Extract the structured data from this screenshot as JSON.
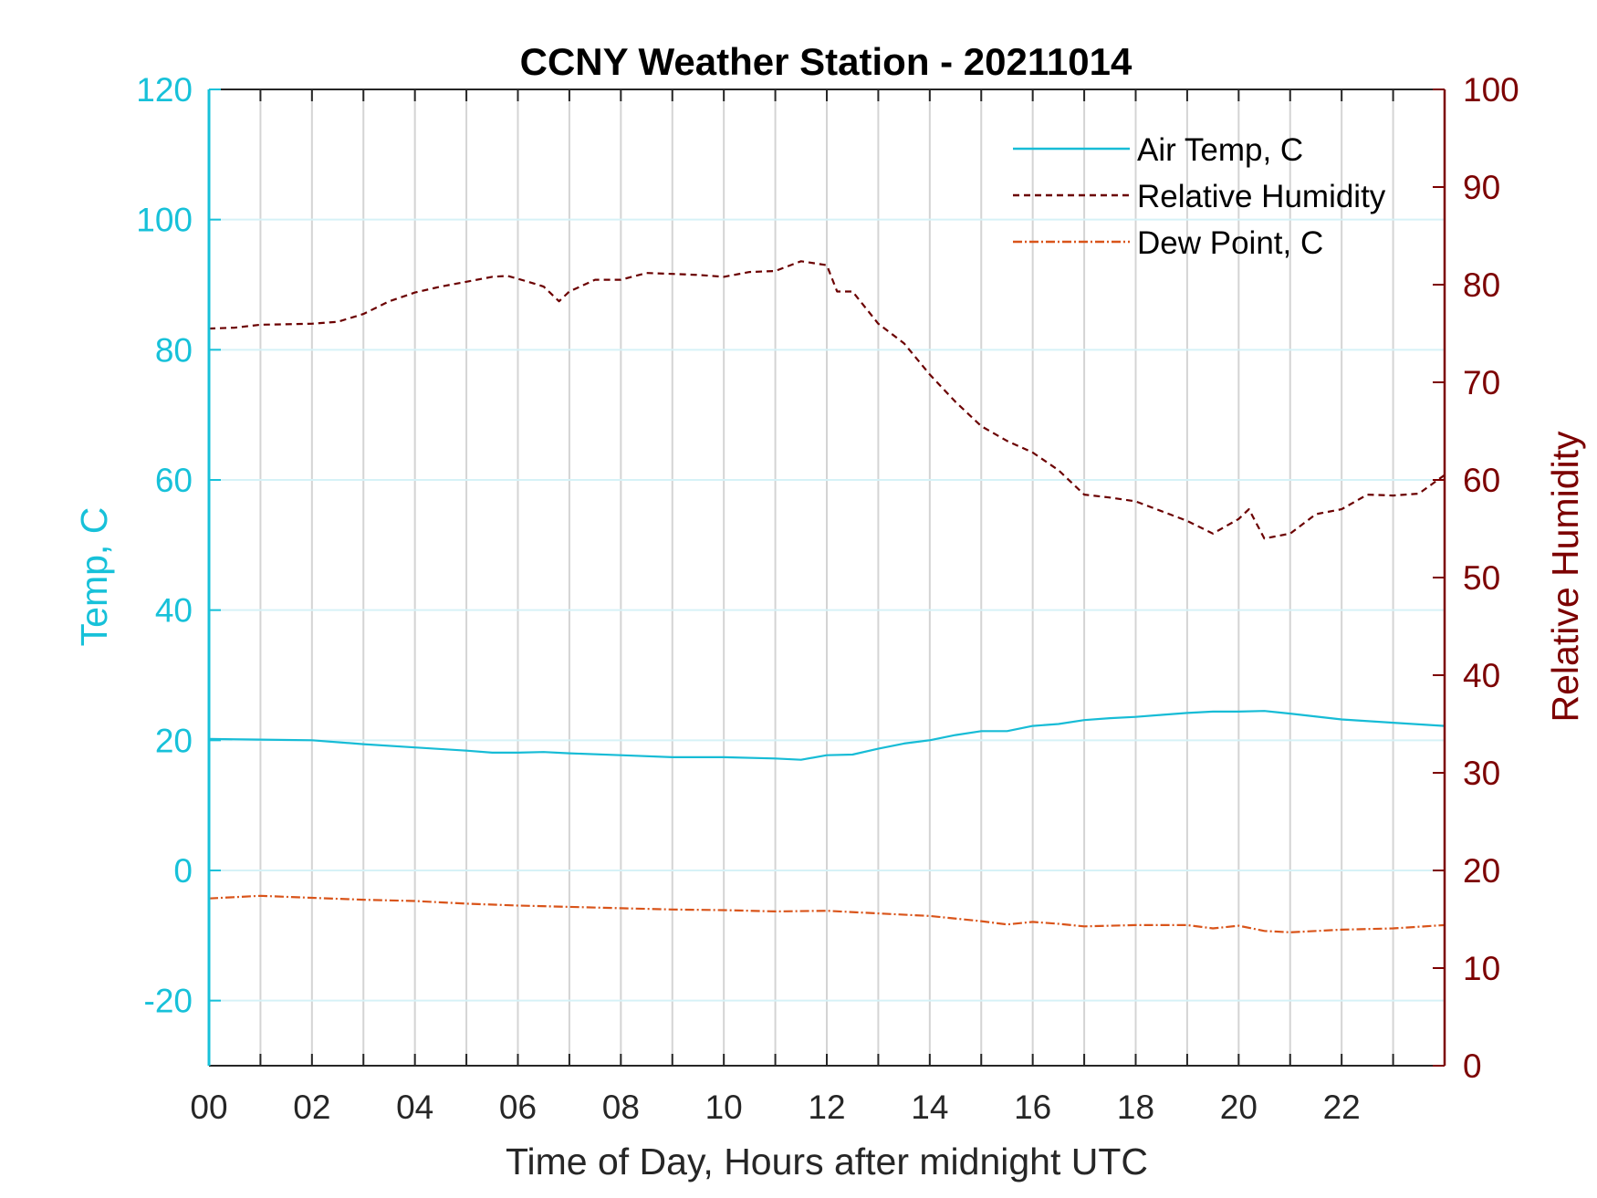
{
  "chart_data": {
    "type": "line",
    "title": "CCNY Weather Station - 20211014",
    "xlabel": "Time of Day, Hours after midnight UTC",
    "ylabel_left": "Temp, C",
    "ylabel_right": "Relative Humidity",
    "xlim": [
      0,
      24
    ],
    "ylim_left": [
      -30,
      120
    ],
    "ylim_right": [
      0,
      100
    ],
    "x_ticks": [
      0,
      2,
      4,
      6,
      8,
      10,
      12,
      14,
      16,
      18,
      20,
      22
    ],
    "x_tick_labels": [
      "00",
      "02",
      "04",
      "06",
      "08",
      "10",
      "12",
      "14",
      "16",
      "18",
      "20",
      "22"
    ],
    "y_left_ticks": [
      -20,
      0,
      20,
      40,
      60,
      80,
      100,
      120
    ],
    "y_right_ticks": [
      0,
      10,
      20,
      30,
      40,
      50,
      60,
      70,
      80,
      90,
      100
    ],
    "grid": true,
    "legend_position": "top-right",
    "colors": {
      "left_axis": "#17c1d9",
      "right_axis": "#7c0000"
    },
    "series": [
      {
        "name": "Air Temp, C",
        "axis": "left",
        "color": "#17bcd6",
        "style": "solid",
        "x": [
          0,
          1,
          2,
          3,
          4,
          5,
          5.5,
          6,
          6.5,
          7,
          8,
          9,
          10,
          11,
          11.5,
          12,
          12.5,
          13,
          13.5,
          14,
          14.5,
          15,
          15.5,
          16,
          16.5,
          17,
          17.5,
          18,
          18.5,
          19,
          19.5,
          20,
          20.5,
          21,
          22,
          23,
          24
        ],
        "y": [
          20.2,
          20.1,
          20.0,
          19.4,
          18.9,
          18.4,
          18.1,
          18.1,
          18.2,
          18.0,
          17.7,
          17.4,
          17.4,
          17.2,
          17.0,
          17.7,
          17.8,
          18.7,
          19.5,
          20.0,
          20.8,
          21.4,
          21.4,
          22.2,
          22.5,
          23.1,
          23.4,
          23.6,
          23.9,
          24.2,
          24.4,
          24.4,
          24.5,
          24.1,
          23.2,
          22.7,
          22.2
        ]
      },
      {
        "name": "Relative Humidity",
        "axis": "right",
        "color": "#6b0000",
        "style": "dashed",
        "x": [
          0,
          0.5,
          1,
          2,
          2.5,
          3,
          3.5,
          4,
          4.5,
          5,
          5.5,
          5.8,
          6.2,
          6.5,
          6.8,
          7,
          7.5,
          8,
          8.5,
          9,
          9.5,
          10,
          10.5,
          11,
          11.5,
          12,
          12.2,
          12.5,
          13,
          13.5,
          14,
          14.5,
          15,
          15.5,
          16,
          16.5,
          17,
          17.5,
          18,
          18.5,
          19,
          19.5,
          20,
          20.2,
          20.5,
          21,
          21.5,
          22,
          22.5,
          23,
          23.5,
          24
        ],
        "y": [
          75.5,
          75.6,
          75.9,
          76.0,
          76.2,
          77.0,
          78.3,
          79.2,
          79.8,
          80.3,
          80.8,
          80.9,
          80.3,
          79.8,
          78.3,
          79.3,
          80.5,
          80.5,
          81.2,
          81.1,
          81.0,
          80.8,
          81.3,
          81.4,
          82.4,
          82.0,
          79.3,
          79.3,
          76.0,
          74.0,
          70.8,
          68.0,
          65.5,
          64.0,
          62.8,
          61.0,
          58.5,
          58.2,
          57.8,
          56.8,
          55.8,
          54.5,
          56.0,
          57.0,
          54.0,
          54.5,
          56.5,
          57.0,
          58.5,
          58.4,
          58.6,
          60.5
        ]
      },
      {
        "name": "Dew Point, C",
        "axis": "left",
        "color": "#d9541a",
        "style": "dash-dot",
        "x": [
          0,
          1,
          2,
          3,
          4,
          5,
          6,
          7,
          8,
          9,
          10,
          11,
          12,
          13,
          14,
          15,
          15.5,
          16,
          16.5,
          17,
          17.5,
          18,
          19,
          19.5,
          20,
          20.5,
          21,
          22,
          23,
          24
        ],
        "y": [
          -4.3,
          -3.9,
          -4.2,
          -4.5,
          -4.7,
          -5.1,
          -5.4,
          -5.6,
          -5.8,
          -6.0,
          -6.1,
          -6.3,
          -6.2,
          -6.6,
          -7.0,
          -7.8,
          -8.3,
          -7.9,
          -8.2,
          -8.6,
          -8.5,
          -8.4,
          -8.4,
          -8.9,
          -8.5,
          -9.3,
          -9.5,
          -9.1,
          -8.9,
          -8.4
        ]
      }
    ]
  }
}
